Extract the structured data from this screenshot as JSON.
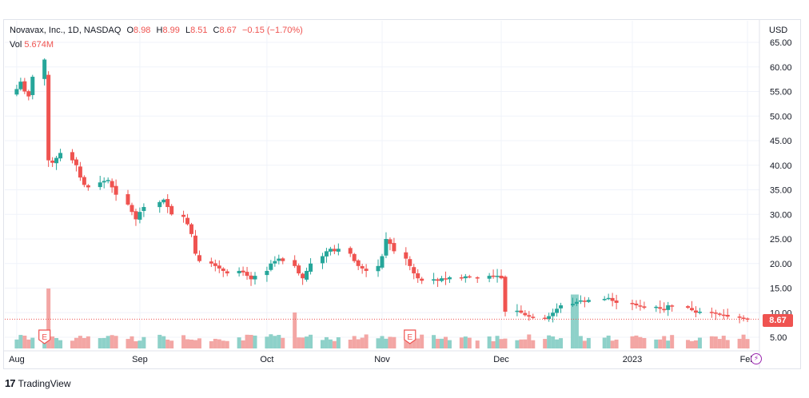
{
  "header": {
    "symbol": "Novavax, Inc., 1D, NASDAQ",
    "o_label": "O",
    "o_value": "8.98",
    "h_label": "H",
    "h_value": "8.99",
    "l_label": "L",
    "l_value": "8.51",
    "c_label": "C",
    "c_value": "8.67",
    "change": "−0.15 (−1.70%)",
    "vol_label": "Vol",
    "vol_value": "5.674M"
  },
  "axis": {
    "currency": "USD"
  },
  "last_price_label": "8.67",
  "footer": {
    "brand": "TradingView",
    "logo_glyph": "17"
  },
  "earnings_marker": "E",
  "colors": {
    "up": "#26a69a",
    "down": "#ef5350",
    "up_vol": "#8ed1c9",
    "down_vol": "#f3a6a4",
    "grid": "#f0f3fa"
  },
  "chart_data": {
    "type": "candlestick",
    "title": "Novavax, Inc., 1D, NASDAQ",
    "ylim": [
      3,
      67
    ],
    "y_ticks": [
      "5.00",
      "10.00",
      "15.00",
      "20.00",
      "25.00",
      "30.00",
      "35.00",
      "40.00",
      "45.00",
      "50.00",
      "55.00",
      "60.00",
      "65.00"
    ],
    "x_ticks": [
      "Aug",
      "Sep",
      "Oct",
      "Nov",
      "Dec",
      "2023",
      "Feb"
    ],
    "last_price": 8.67,
    "gridlines": true,
    "earnings_dates": [
      "2022-08-08",
      "2022-11-08"
    ],
    "volume_spikes": [
      {
        "date": "2022-08-09",
        "relative": 1.0
      },
      {
        "date": "2022-12-19",
        "relative": 0.9
      },
      {
        "date": "2022-12-20",
        "relative": 0.9
      },
      {
        "date": "2022-10-10",
        "relative": 0.6
      }
    ],
    "closes": [
      [
        "2022-08-01",
        55.5
      ],
      [
        "2022-08-02",
        57.0
      ],
      [
        "2022-08-03",
        55.0
      ],
      [
        "2022-08-04",
        54.0
      ],
      [
        "2022-08-05",
        58.0
      ],
      [
        "2022-08-08",
        61.5
      ],
      [
        "2022-08-09",
        41.0
      ],
      [
        "2022-08-10",
        40.5
      ],
      [
        "2022-08-11",
        41.5
      ],
      [
        "2022-08-12",
        42.5
      ],
      [
        "2022-08-15",
        41.0
      ],
      [
        "2022-08-16",
        40.0
      ],
      [
        "2022-08-17",
        37.5
      ],
      [
        "2022-08-18",
        36.0
      ],
      [
        "2022-08-19",
        35.5
      ],
      [
        "2022-08-22",
        36.5
      ],
      [
        "2022-08-23",
        36.8
      ],
      [
        "2022-08-24",
        37.0
      ],
      [
        "2022-08-25",
        35.5
      ],
      [
        "2022-08-26",
        34.0
      ],
      [
        "2022-08-29",
        32.0
      ],
      [
        "2022-08-30",
        30.5
      ],
      [
        "2022-08-31",
        29.0
      ],
      [
        "2022-09-01",
        30.5
      ],
      [
        "2022-09-02",
        31.5
      ],
      [
        "2022-09-06",
        32.5
      ],
      [
        "2022-09-07",
        33.0
      ],
      [
        "2022-09-08",
        31.5
      ],
      [
        "2022-09-09",
        30.0
      ],
      [
        "2022-09-12",
        29.5
      ],
      [
        "2022-09-13",
        28.0
      ],
      [
        "2022-09-14",
        26.0
      ],
      [
        "2022-09-15",
        22.0
      ],
      [
        "2022-09-16",
        20.5
      ],
      [
        "2022-09-19",
        20.0
      ],
      [
        "2022-09-20",
        19.5
      ],
      [
        "2022-09-21",
        19.0
      ],
      [
        "2022-09-22",
        18.5
      ],
      [
        "2022-09-23",
        18.0
      ],
      [
        "2022-09-26",
        18.5
      ],
      [
        "2022-09-27",
        18.2
      ],
      [
        "2022-09-28",
        17.5
      ],
      [
        "2022-09-29",
        16.8
      ],
      [
        "2022-09-30",
        17.5
      ],
      [
        "2022-10-03",
        18.5
      ],
      [
        "2022-10-04",
        20.0
      ],
      [
        "2022-10-05",
        20.5
      ],
      [
        "2022-10-06",
        21.0
      ],
      [
        "2022-10-07",
        20.5
      ],
      [
        "2022-10-10",
        19.5
      ],
      [
        "2022-10-11",
        18.0
      ],
      [
        "2022-10-12",
        17.0
      ],
      [
        "2022-10-13",
        18.5
      ],
      [
        "2022-10-14",
        20.0
      ],
      [
        "2022-10-17",
        21.5
      ],
      [
        "2022-10-18",
        22.5
      ],
      [
        "2022-10-19",
        23.0
      ],
      [
        "2022-10-20",
        22.5
      ],
      [
        "2022-10-21",
        23.0
      ],
      [
        "2022-10-24",
        22.0
      ],
      [
        "2022-10-25",
        20.5
      ],
      [
        "2022-10-26",
        19.5
      ],
      [
        "2022-10-27",
        19.0
      ],
      [
        "2022-10-28",
        18.5
      ],
      [
        "2022-10-31",
        19.5
      ],
      [
        "2022-11-01",
        21.5
      ],
      [
        "2022-11-02",
        25.0
      ],
      [
        "2022-11-03",
        24.0
      ],
      [
        "2022-11-04",
        22.5
      ],
      [
        "2022-11-07",
        21.0
      ],
      [
        "2022-11-08",
        19.5
      ],
      [
        "2022-11-09",
        18.0
      ],
      [
        "2022-11-10",
        17.0
      ],
      [
        "2022-11-11",
        16.5
      ],
      [
        "2022-11-14",
        16.8
      ],
      [
        "2022-11-15",
        16.5
      ],
      [
        "2022-11-16",
        17.0
      ],
      [
        "2022-11-17",
        16.8
      ],
      [
        "2022-11-18",
        17.2
      ],
      [
        "2022-11-21",
        17.0
      ],
      [
        "2022-11-22",
        17.4
      ],
      [
        "2022-11-23",
        17.2
      ],
      [
        "2022-11-25",
        17.0
      ],
      [
        "2022-11-28",
        17.5
      ],
      [
        "2022-11-29",
        17.3
      ],
      [
        "2022-11-30",
        17.5
      ],
      [
        "2022-12-01",
        17.0
      ],
      [
        "2022-12-02",
        10.2
      ],
      [
        "2022-12-05",
        10.4
      ],
      [
        "2022-12-06",
        10.0
      ],
      [
        "2022-12-07",
        9.5
      ],
      [
        "2022-12-08",
        9.2
      ],
      [
        "2022-12-09",
        9.0
      ],
      [
        "2022-12-12",
        8.8
      ],
      [
        "2022-12-13",
        9.3
      ],
      [
        "2022-12-14",
        10.0
      ],
      [
        "2022-12-15",
        10.8
      ],
      [
        "2022-12-16",
        11.5
      ],
      [
        "2022-12-19",
        11.8
      ],
      [
        "2022-12-20",
        12.2
      ],
      [
        "2022-12-21",
        12.5
      ],
      [
        "2022-12-22",
        12.2
      ],
      [
        "2022-12-23",
        12.6
      ],
      [
        "2022-12-27",
        12.8
      ],
      [
        "2022-12-28",
        13.0
      ],
      [
        "2022-12-29",
        12.4
      ],
      [
        "2022-12-30",
        12.0
      ],
      [
        "2023-01-03",
        11.8
      ],
      [
        "2023-01-04",
        11.5
      ],
      [
        "2023-01-05",
        11.3
      ],
      [
        "2023-01-06",
        11.0
      ],
      [
        "2023-01-09",
        11.2
      ],
      [
        "2023-01-10",
        10.8
      ],
      [
        "2023-01-11",
        10.5
      ],
      [
        "2023-01-12",
        11.5
      ],
      [
        "2023-01-13",
        11.3
      ],
      [
        "2023-01-17",
        11.0
      ],
      [
        "2023-01-18",
        10.5
      ],
      [
        "2023-01-19",
        10.0
      ],
      [
        "2023-01-20",
        10.2
      ],
      [
        "2023-01-23",
        10.0
      ],
      [
        "2023-01-24",
        9.8
      ],
      [
        "2023-01-25",
        9.6
      ],
      [
        "2023-01-26",
        9.5
      ],
      [
        "2023-01-27",
        9.2
      ],
      [
        "2023-01-30",
        9.0
      ],
      [
        "2023-01-31",
        8.8
      ],
      [
        "2023-02-01",
        8.67
      ]
    ]
  }
}
